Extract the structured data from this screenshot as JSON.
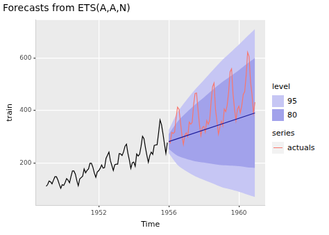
{
  "chart_data": {
    "type": "line",
    "title": "Forecasts from ETS(A,A,N)",
    "x_label": "Time",
    "y_label": "train",
    "xlim": [
      1948.4,
      1961.5
    ],
    "xticks": [
      1952,
      1956,
      1960
    ],
    "ylim": [
      40,
      745
    ],
    "yticks": [
      200,
      400,
      600
    ],
    "grid": true,
    "legend": "right",
    "series": [
      {
        "group": "level",
        "name": "95",
        "type": "area",
        "color": "#c6c6f4",
        "x": [
          1956,
          1956.5,
          1957,
          1957.5,
          1958,
          1958.5,
          1959,
          1959.5,
          1960,
          1960.5,
          1960.917
        ],
        "lower": [
          237,
          193,
          169,
          150,
          136,
          123,
          109,
          100,
          91,
          80,
          71
        ],
        "upper": [
          327,
          393,
          439,
          480,
          516,
          553,
          589,
          620,
          651,
          684,
          711
        ]
      },
      {
        "group": "level",
        "name": "80",
        "type": "area",
        "color": "#a2a2eb",
        "x": [
          1956,
          1956.5,
          1957,
          1957.5,
          1958,
          1958.5,
          1959,
          1959.5,
          1960,
          1960.5,
          1960.917
        ],
        "lower": [
          253,
          228,
          216,
          207,
          202,
          197,
          192,
          190,
          188,
          184,
          182
        ],
        "upper": [
          311,
          358,
          392,
          423,
          450,
          479,
          506,
          530,
          554,
          580,
          600
        ]
      },
      {
        "type": "line",
        "color": "#000000",
        "x": [
          1949,
          1949.083,
          1949.167,
          1949.25,
          1949.333,
          1949.417,
          1949.5,
          1949.583,
          1949.667,
          1949.75,
          1949.833,
          1949.917,
          1950,
          1950.083,
          1950.167,
          1950.25,
          1950.333,
          1950.417,
          1950.5,
          1950.583,
          1950.667,
          1950.75,
          1950.833,
          1950.917,
          1951,
          1951.083,
          1951.167,
          1951.25,
          1951.333,
          1951.417,
          1951.5,
          1951.583,
          1951.667,
          1951.75,
          1951.833,
          1951.917,
          1952,
          1952.083,
          1952.167,
          1952.25,
          1952.333,
          1952.417,
          1952.5,
          1952.583,
          1952.667,
          1952.75,
          1952.833,
          1952.917,
          1953,
          1953.083,
          1953.167,
          1953.25,
          1953.333,
          1953.417,
          1953.5,
          1953.583,
          1953.667,
          1953.75,
          1953.833,
          1953.917,
          1954,
          1954.083,
          1954.167,
          1954.25,
          1954.333,
          1954.417,
          1954.5,
          1954.583,
          1954.667,
          1954.75,
          1954.833,
          1954.917,
          1955,
          1955.083,
          1955.167,
          1955.25,
          1955.333,
          1955.417,
          1955.5,
          1955.583,
          1955.667,
          1955.75,
          1955.833,
          1955.917
        ],
        "values": [
          112,
          118,
          132,
          129,
          121,
          135,
          148,
          148,
          136,
          119,
          104,
          118,
          115,
          126,
          141,
          135,
          125,
          149,
          170,
          170,
          158,
          133,
          114,
          140,
          145,
          150,
          178,
          163,
          172,
          178,
          199,
          199,
          184,
          162,
          146,
          166,
          171,
          180,
          193,
          181,
          183,
          218,
          230,
          242,
          209,
          191,
          172,
          194,
          196,
          196,
          236,
          235,
          229,
          243,
          264,
          272,
          237,
          211,
          180,
          201,
          204,
          188,
          235,
          227,
          234,
          264,
          302,
          293,
          259,
          229,
          203,
          229,
          242,
          233,
          267,
          269,
          270,
          315,
          364,
          347,
          312,
          274,
          237,
          278
        ]
      },
      {
        "group": "series",
        "name": "actuals",
        "type": "line",
        "color": "#f8766d",
        "x": [
          1956,
          1956.083,
          1956.167,
          1956.25,
          1956.333,
          1956.417,
          1956.5,
          1956.583,
          1956.667,
          1956.75,
          1956.833,
          1956.917,
          1957,
          1957.083,
          1957.167,
          1957.25,
          1957.333,
          1957.417,
          1957.5,
          1957.583,
          1957.667,
          1957.75,
          1957.833,
          1957.917,
          1958,
          1958.083,
          1958.167,
          1958.25,
          1958.333,
          1958.417,
          1958.5,
          1958.583,
          1958.667,
          1958.75,
          1958.833,
          1958.917,
          1959,
          1959.083,
          1959.167,
          1959.25,
          1959.333,
          1959.417,
          1959.5,
          1959.583,
          1959.667,
          1959.75,
          1959.833,
          1959.917,
          1960,
          1960.083,
          1960.167,
          1960.25,
          1960.333,
          1960.417,
          1960.5,
          1960.583,
          1960.667,
          1960.75,
          1960.833,
          1960.917
        ],
        "values": [
          284,
          277,
          317,
          313,
          318,
          374,
          413,
          405,
          355,
          306,
          271,
          306,
          315,
          301,
          356,
          348,
          355,
          422,
          465,
          467,
          404,
          347,
          305,
          336,
          340,
          318,
          362,
          348,
          363,
          435,
          491,
          505,
          404,
          359,
          310,
          337,
          360,
          342,
          406,
          396,
          420,
          472,
          548,
          559,
          463,
          407,
          362,
          405,
          417,
          391,
          419,
          461,
          472,
          535,
          622,
          606,
          508,
          461,
          390,
          432
        ]
      },
      {
        "type": "line",
        "color": "#1a1a9a",
        "x": [
          1956,
          1960.917
        ],
        "values": [
          282,
          391
        ]
      }
    ]
  }
}
